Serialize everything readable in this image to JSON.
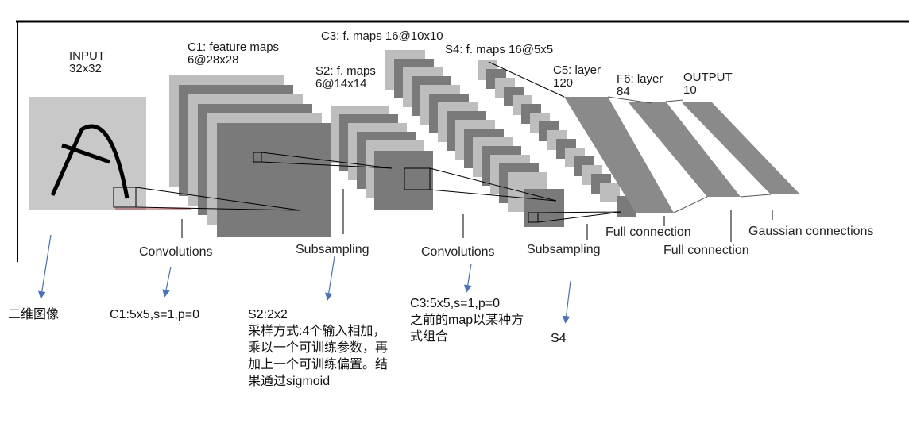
{
  "layers": {
    "input": "INPUT\n32x32",
    "c1": "C1: feature maps\n6@28x28",
    "s2": "S2: f. maps\n6@14x14",
    "c3": "C3: f. maps 16@10x10",
    "s4": "S4: f. maps 16@5x5",
    "c5": "C5: layer\n120",
    "f6": "F6: layer\n84",
    "output": "OUTPUT\n10"
  },
  "operations": {
    "convolutions_1": "Convolutions",
    "subsampling_1": "Subsampling",
    "convolutions_2": "Convolutions",
    "subsampling_2": "Subsampling",
    "full_connection_1": "Full connection",
    "full_connection_2": "Full connection",
    "gaussian": "Gaussian connections"
  },
  "annotations": {
    "input_note": "二维图像",
    "c1_note": "C1:5x5,s=1,p=0",
    "s2_note": "S2:2x2\n采样方式:4个输入相加，乘以一个可训练参数，再加上一个可训练偏置。结果通过sigmoid",
    "c3_note": "C3:5x5,s=1,p=0\n之前的map以某种方式组合",
    "s4_note": "S4"
  },
  "colors": {
    "input_bg": "#c8c8c8",
    "map_dark": "#7a7a7a",
    "map_light": "#bdbdbd",
    "fc_band": "#8a8a8a",
    "arrow": "#4472c4"
  }
}
